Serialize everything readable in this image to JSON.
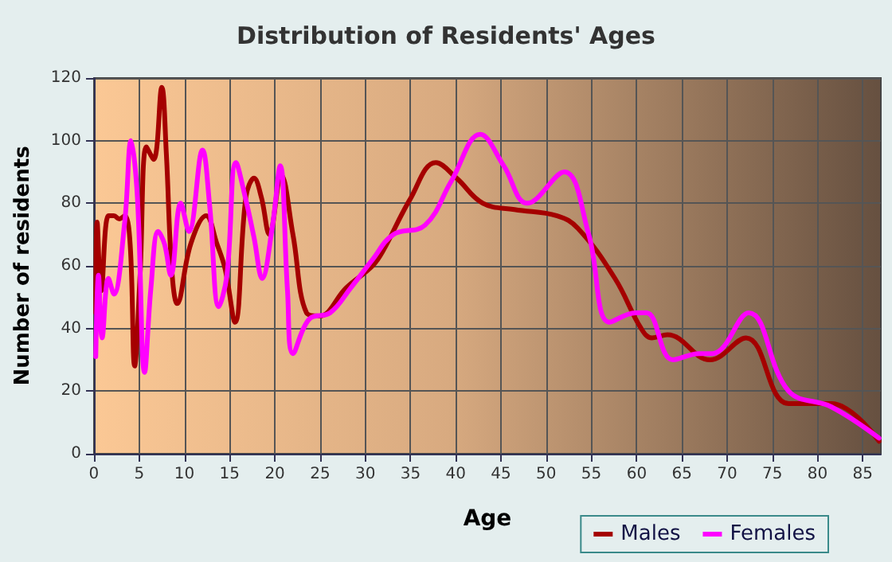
{
  "chart_data": {
    "type": "line",
    "title": "Distribution of Residents' Ages",
    "xlabel": "Age",
    "ylabel": "Number of residents",
    "xlim": [
      0,
      87
    ],
    "xticks": [
      0,
      5,
      10,
      15,
      20,
      25,
      30,
      35,
      40,
      45,
      50,
      55,
      60,
      65,
      70,
      75,
      80,
      85
    ],
    "ylim": [
      0,
      120
    ],
    "yticks": [
      0,
      20,
      40,
      60,
      80,
      100,
      120
    ],
    "grid": true,
    "legend": "bottom right",
    "marker": "none",
    "line_style": "solid",
    "series": [
      {
        "name": "Males",
        "color": "#a50000",
        "x": [
          0.2,
          0.35,
          0.8,
          1.6,
          2.2,
          2.8,
          3.4,
          4,
          4.5,
          5.1,
          5.8,
          6.6,
          7.5,
          8,
          8.6,
          9.2,
          10.7,
          12.4,
          13.6,
          14.5,
          15.6,
          16.8,
          17.7,
          18.5,
          19.4,
          20.7,
          22,
          23.5,
          24.9,
          27.9,
          30.8,
          32,
          34.9,
          37.8,
          40.1,
          43,
          46.5,
          51.2,
          53.5,
          57.6,
          60.5,
          61.7,
          63.4,
          68.1,
          72.1,
          76.8,
          81.5,
          86.8
        ],
        "values": [
          45,
          74,
          52,
          76,
          76,
          75,
          76,
          67,
          28,
          57,
          98,
          94,
          117,
          96,
          59,
          48,
          67,
          76,
          67,
          59,
          42,
          82,
          88,
          82,
          70,
          89,
          70,
          45,
          44,
          53,
          60,
          65,
          81,
          93,
          88,
          80,
          78,
          76,
          72,
          56,
          40,
          37,
          38,
          30,
          37,
          16,
          16,
          4
        ]
      },
      {
        "name": "Females",
        "color": "#ff00ff",
        "x": [
          0.2,
          0.5,
          0.9,
          1.6,
          2.2,
          3.4,
          4.1,
          4.8,
          5.6,
          6.3,
          7.1,
          7.8,
          8.5,
          9.6,
          10.5,
          12,
          12.8,
          13.8,
          14.7,
          15.7,
          16.8,
          17.7,
          18.6,
          19.7,
          20.6,
          21.4,
          22,
          23.8,
          26.1,
          28.4,
          30.8,
          33.1,
          36.6,
          39.5,
          42.7,
          45.3,
          47.9,
          52,
          54.7,
          57,
          59.9,
          61.1,
          64,
          66.9,
          68.4,
          72.4,
          76.8,
          81.5,
          86.8
        ],
        "values": [
          31,
          57,
          37,
          56,
          51,
          74,
          100,
          82,
          26,
          53,
          71,
          67,
          57,
          80,
          71,
          97,
          79,
          47,
          57,
          93,
          81,
          69,
          56,
          72,
          92,
          52,
          32,
          43,
          45,
          53,
          62,
          70,
          73,
          87,
          102,
          92,
          80,
          90,
          70,
          42,
          45,
          45,
          30,
          32,
          32,
          45,
          20,
          15,
          5
        ]
      }
    ]
  }
}
